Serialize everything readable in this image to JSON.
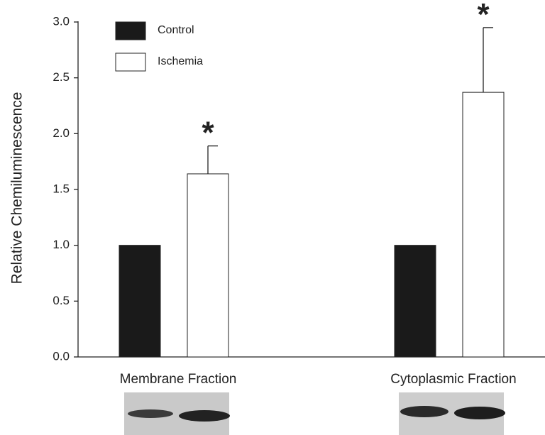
{
  "chart_data": {
    "type": "bar",
    "y_label": "Relative Chemiluminescence",
    "categories": [
      "Membrane Fraction",
      "Cytoplasmic Fraction"
    ],
    "series": [
      {
        "name": "Control",
        "color": "#1a1a1a",
        "values": [
          1.0,
          1.0
        ]
      },
      {
        "name": "Ischemia",
        "color": "#ffffff",
        "values": [
          1.64,
          2.37
        ],
        "errors": [
          0.25,
          0.58
        ]
      }
    ],
    "annotations": [
      "*",
      "*"
    ],
    "ylim": [
      0,
      3.0
    ],
    "yticks": [
      {
        "value": 0,
        "label": "0.0"
      },
      {
        "value": 0.5,
        "label": "0.5"
      },
      {
        "value": 1.0,
        "label": "1.0"
      },
      {
        "value": 1.5,
        "label": "1.5"
      },
      {
        "value": 2.0,
        "label": "2.0"
      },
      {
        "value": 2.5,
        "label": "2.5"
      },
      {
        "value": 3.0,
        "label": "3.0"
      }
    ],
    "grid": false,
    "legend": "top-left"
  }
}
